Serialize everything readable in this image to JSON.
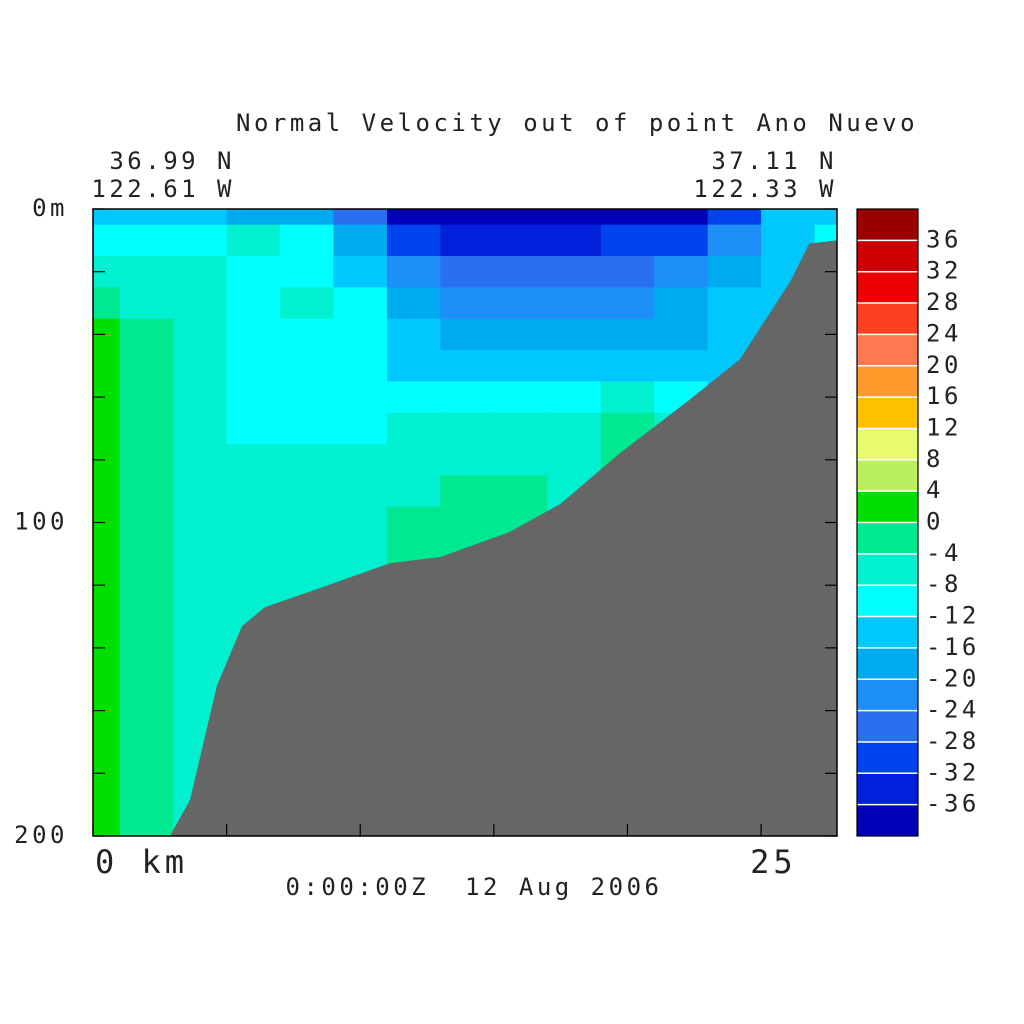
{
  "chart_data": {
    "type": "contour",
    "title": "Normal Velocity out of point Ano Nuevo",
    "left_lat": "36.99 N",
    "left_lon": "122.61 W",
    "right_lat": "37.11 N",
    "right_lon": "122.33 W",
    "time": "0:00:00Z  12 Aug 2006",
    "xlim": [
      0,
      27.84
    ],
    "xticks": [
      0,
      5,
      10,
      15,
      20,
      25
    ],
    "xlabels": [
      {
        "value": 0,
        "label": "0 km"
      },
      {
        "value": 25,
        "label": "25"
      }
    ],
    "ylim": [
      200,
      0
    ],
    "yticks": [
      0,
      20,
      40,
      60,
      80,
      100,
      120,
      140,
      160,
      180,
      200
    ],
    "ylabels": [
      {
        "value": 0,
        "label": "0m"
      },
      {
        "value": 100,
        "label": "100"
      },
      {
        "value": 200,
        "label": "200"
      }
    ],
    "levels": [
      -40,
      -36,
      -32,
      -28,
      -24,
      -20,
      -16,
      -12,
      -8,
      -4,
      0,
      4,
      8,
      12,
      16,
      20,
      24,
      28,
      32,
      36,
      40
    ],
    "colors": [
      "#0000b8",
      "#0020dc",
      "#0044f0",
      "#2a6ff0",
      "#1e8ef8",
      "#00aaf0",
      "#00c8ff",
      "#00ffff",
      "#00f0d0",
      "#00e890",
      "#00e000",
      "#b8f060",
      "#eafa6e",
      "#ffc000",
      "#ff9a2a",
      "#ff7a50",
      "#ff4020",
      "#ee0000",
      "#cc0000",
      "#990000"
    ],
    "cbar_ticks": [
      -36,
      -32,
      -28,
      -24,
      -20,
      -16,
      -12,
      -8,
      -4,
      0,
      4,
      8,
      12,
      16,
      20,
      24,
      28,
      32,
      36
    ],
    "grid_x": [
      0,
      2,
      4,
      6,
      8,
      10,
      12,
      14,
      16,
      18,
      20,
      22,
      24,
      26,
      28
    ],
    "grid_depth": [
      0,
      10,
      20,
      30,
      40,
      50,
      60,
      70,
      80,
      90,
      100,
      110,
      120,
      130,
      140,
      150,
      160,
      170,
      180,
      190,
      200
    ],
    "z": [
      [
        -14,
        -14,
        -16,
        -18,
        -20,
        -26,
        -38,
        -38,
        -38,
        -38,
        -38,
        -38,
        -30,
        -16,
        -14
      ],
      [
        -9,
        -9,
        -10,
        -6,
        -10,
        -18,
        -30,
        -34,
        -34,
        -34,
        -32,
        -30,
        -22,
        -14,
        -12
      ],
      [
        -5,
        -7,
        -8,
        -9,
        -12,
        -16,
        -22,
        -28,
        -28,
        -28,
        -26,
        -22,
        -18,
        -14,
        null
      ],
      [
        -2,
        -5,
        -8,
        -10,
        -7,
        -12,
        -18,
        -22,
        -24,
        -24,
        -22,
        -20,
        -16,
        -13,
        null
      ],
      [
        1,
        -3,
        -7,
        -10,
        -10,
        -12,
        -14,
        -18,
        -20,
        -20,
        -18,
        -17,
        -14,
        -13,
        null
      ],
      [
        2,
        -3,
        -7,
        -10,
        -11,
        -11,
        -14,
        -14,
        -14,
        -15,
        -14,
        -14,
        -14,
        null,
        null
      ],
      [
        2,
        -2,
        -6,
        -9,
        -10,
        -10,
        -10,
        -11,
        -10,
        -10,
        -7,
        -9,
        -14,
        null,
        null
      ],
      [
        2,
        -2,
        -6,
        -9,
        -10,
        -9,
        -8,
        -8,
        -7,
        -7,
        -3,
        -5,
        null,
        null,
        null
      ],
      [
        2,
        -2,
        -6,
        -7,
        -8,
        -7,
        -7,
        -6,
        -6,
        -6,
        -3,
        null,
        null,
        null,
        null
      ],
      [
        2,
        -2,
        -6,
        -6,
        -6,
        -6,
        -5,
        -3,
        -3,
        -5,
        -5,
        null,
        null,
        null,
        null
      ],
      [
        2,
        -2,
        -6,
        -6,
        -6,
        -5,
        -3,
        -3,
        -3,
        -5,
        null,
        null,
        null,
        null,
        null
      ],
      [
        2,
        -2,
        -6,
        -6,
        -6,
        -6,
        -3,
        -3,
        -3,
        null,
        null,
        null,
        null,
        null,
        null
      ],
      [
        3,
        -2,
        -6,
        -6,
        -6,
        -6,
        -3,
        null,
        null,
        null,
        null,
        null,
        null,
        null,
        null
      ],
      [
        3,
        -2,
        -6,
        -6,
        -6,
        null,
        null,
        null,
        null,
        null,
        null,
        null,
        null,
        null,
        null
      ],
      [
        3,
        -2,
        -6,
        -6,
        null,
        null,
        null,
        null,
        null,
        null,
        null,
        null,
        null,
        null,
        null
      ],
      [
        3,
        -2,
        -6,
        -6,
        null,
        null,
        null,
        null,
        null,
        null,
        null,
        null,
        null,
        null,
        null
      ],
      [
        3,
        -2,
        -6,
        null,
        null,
        null,
        null,
        null,
        null,
        null,
        null,
        null,
        null,
        null,
        null
      ],
      [
        3,
        -2,
        -6,
        null,
        null,
        null,
        null,
        null,
        null,
        null,
        null,
        null,
        null,
        null,
        null
      ],
      [
        3,
        -2,
        -6,
        null,
        null,
        null,
        null,
        null,
        null,
        null,
        null,
        null,
        null,
        null,
        null
      ],
      [
        3,
        -2,
        -6,
        null,
        null,
        null,
        null,
        null,
        null,
        null,
        null,
        null,
        null,
        null,
        null
      ],
      [
        3,
        -2,
        -6,
        null,
        null,
        null,
        null,
        null,
        null,
        null,
        null,
        null,
        null,
        null,
        null
      ]
    ],
    "bathymetry": {
      "color": "#666666",
      "x": [
        2.88,
        3.63,
        4.64,
        5.58,
        6.44,
        8.3,
        11.1,
        13,
        15.6,
        17.5,
        19.7,
        22.3,
        24.2,
        26.1,
        26.8,
        27.84
      ],
      "depth": [
        200,
        188.5,
        152,
        133,
        127,
        121.5,
        113,
        111,
        103,
        94,
        78,
        61,
        48,
        23,
        11,
        10
      ]
    }
  }
}
